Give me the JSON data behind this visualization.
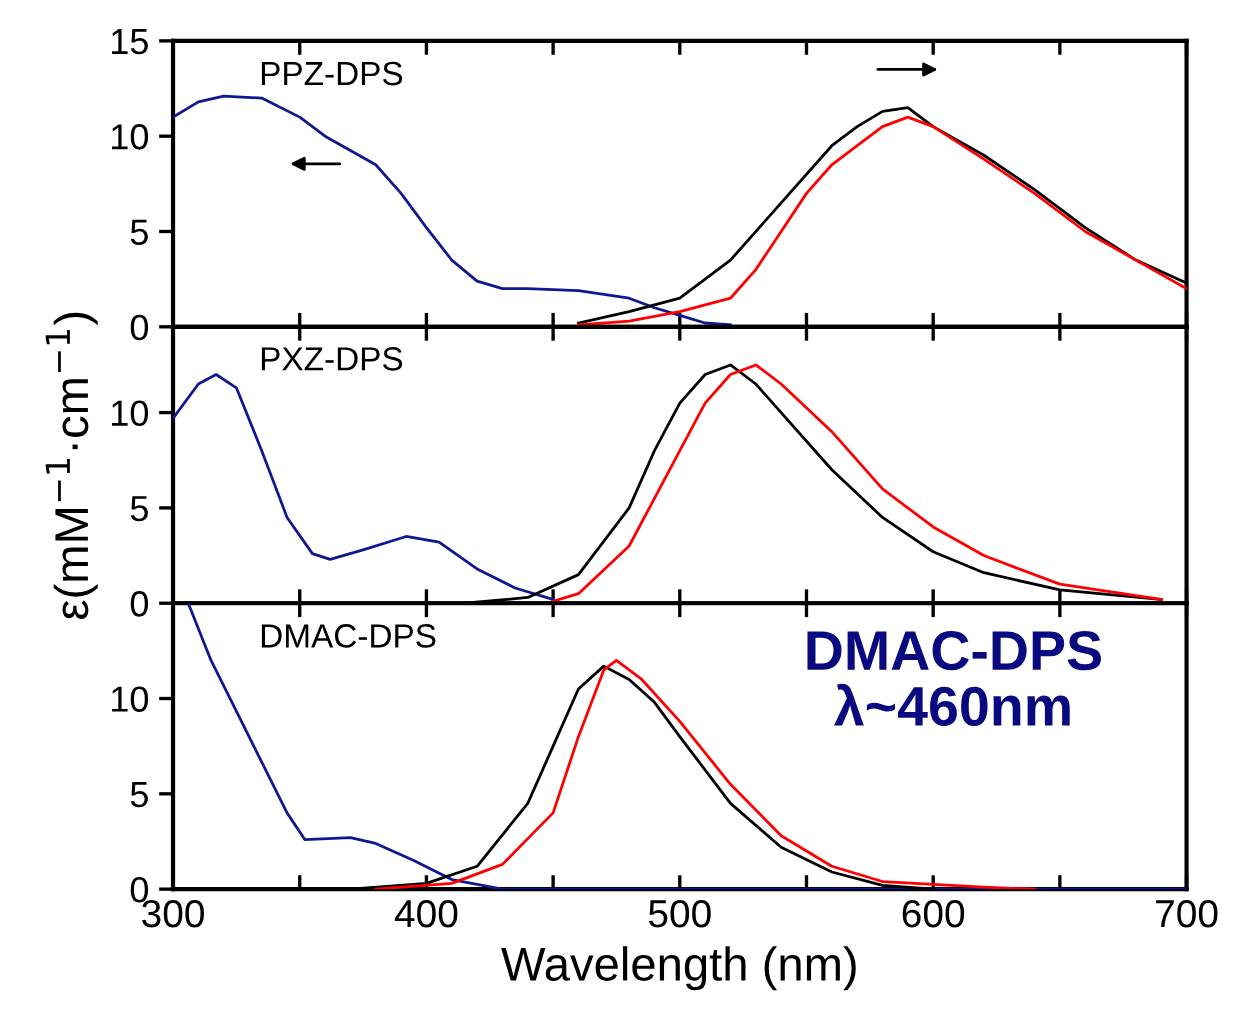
{
  "chart_data": [
    {
      "type": "line",
      "xlim": [
        300,
        700
      ],
      "ylim": [
        0,
        15
      ],
      "yticks": [
        0,
        5,
        10,
        15
      ],
      "xticks": [
        300,
        {
          "value": 350,
          "label": null
        },
        400,
        {
          "value": 450,
          "label": null
        },
        500,
        {
          "value": 550,
          "label": null
        },
        600,
        {
          "value": 650,
          "label": null
        },
        700
      ],
      "tick_labels": "y",
      "grid": false,
      "annotations": [
        "PPZ-DPS"
      ],
      "series": [
        {
          "color": "#101890",
          "x": [
            300,
            310,
            320,
            335,
            350,
            360,
            380,
            390,
            400,
            410,
            420,
            430,
            440,
            460,
            480,
            490,
            500,
            510,
            520
          ],
          "values": [
            11,
            11.8,
            12.1,
            12.0,
            11,
            10,
            8.5,
            7,
            5.2,
            3.5,
            2.4,
            2.0,
            2.0,
            1.9,
            1.5,
            1.0,
            0.6,
            0.2,
            0.1
          ]
        },
        {
          "color": "#000000",
          "x": [
            460,
            480,
            500,
            520,
            540,
            560,
            570,
            580,
            590,
            600,
            620,
            640,
            660,
            680,
            700
          ],
          "values": [
            0.2,
            0.8,
            1.5,
            3.5,
            6.5,
            9.5,
            10.5,
            11.3,
            11.5,
            10.5,
            9.0,
            7.2,
            5.2,
            3.5,
            2.3
          ]
        },
        {
          "color": "#ff0000",
          "x": [
            460,
            480,
            500,
            520,
            530,
            540,
            550,
            560,
            570,
            580,
            590,
            600,
            620,
            640,
            660,
            680,
            700
          ],
          "values": [
            0.1,
            0.3,
            0.8,
            1.5,
            3,
            5,
            7,
            8.5,
            9.5,
            10.5,
            11,
            10.5,
            8.8,
            7,
            5,
            3.5,
            2.0
          ]
        }
      ]
    },
    {
      "type": "line",
      "xlim": [
        300,
        700
      ],
      "ylim": [
        0,
        14.5
      ],
      "yticks": [
        0,
        5,
        10
      ],
      "xticks": [
        300,
        {
          "value": 350,
          "label": null
        },
        400,
        {
          "value": 450,
          "label": null
        },
        500,
        {
          "value": 550,
          "label": null
        },
        600,
        {
          "value": 650,
          "label": null
        },
        700
      ],
      "tick_labels": "y",
      "grid": false,
      "ylabel": "ε(mM$^{−1}$·cm$^{−1}$)",
      "annotations": [
        "PXZ-DPS"
      ],
      "series": [
        {
          "color": "#101890",
          "x": [
            300,
            310,
            317,
            325,
            335,
            345,
            355,
            362,
            375,
            392,
            405,
            420,
            435,
            450
          ],
          "values": [
            9.7,
            11.5,
            12.0,
            11.3,
            8,
            4.5,
            2.6,
            2.3,
            2.8,
            3.5,
            3.2,
            1.8,
            0.8,
            0.2
          ]
        },
        {
          "color": "#000000",
          "x": [
            415,
            440,
            460,
            480,
            490,
            500,
            510,
            520,
            530,
            540,
            560,
            580,
            600,
            620,
            650,
            690
          ],
          "values": [
            0,
            0.3,
            1.5,
            5,
            8,
            10.5,
            12,
            12.5,
            11.5,
            10,
            7,
            4.5,
            2.7,
            1.6,
            0.7,
            0.2
          ]
        },
        {
          "color": "#ff0000",
          "x": [
            450,
            460,
            480,
            490,
            500,
            510,
            520,
            530,
            540,
            560,
            580,
            600,
            620,
            650,
            690
          ],
          "values": [
            0.1,
            0.5,
            3,
            5.5,
            8,
            10.5,
            12,
            12.5,
            11.5,
            9,
            6,
            4,
            2.5,
            1.0,
            0.2
          ]
        }
      ]
    },
    {
      "type": "line",
      "xlim": [
        300,
        700
      ],
      "ylim": [
        0,
        15
      ],
      "yticks": [
        0,
        5,
        10
      ],
      "xticks": [
        300,
        {
          "value": 350,
          "label": null
        },
        400,
        {
          "value": 450,
          "label": null
        },
        500,
        {
          "value": 550,
          "label": null
        },
        600,
        {
          "value": 650,
          "label": null
        },
        700
      ],
      "grid": false,
      "xlabel": "Wavelength (nm)",
      "annotations": [
        "DMAC-DPS",
        "DMAC-DPS\nλ~460nm"
      ],
      "series": [
        {
          "color": "#101890",
          "x": [
            306,
            315,
            330,
            345,
            352,
            370,
            380,
            395,
            410,
            430,
            700
          ],
          "values": [
            15,
            12,
            8,
            4,
            2.6,
            2.7,
            2.4,
            1.5,
            0.5,
            0,
            0
          ]
        },
        {
          "color": "#000000",
          "x": [
            370,
            400,
            420,
            440,
            450,
            460,
            470,
            480,
            490,
            500,
            520,
            540,
            560,
            580,
            600
          ],
          "values": [
            0,
            0.3,
            1.2,
            4.5,
            7.5,
            10.5,
            11.7,
            11,
            9.8,
            8,
            4.5,
            2.2,
            0.9,
            0.2,
            0
          ]
        },
        {
          "color": "#ff0000",
          "x": [
            380,
            410,
            430,
            450,
            460,
            470,
            475,
            485,
            500,
            520,
            540,
            560,
            580,
            620,
            640
          ],
          "values": [
            0,
            0.3,
            1.3,
            4,
            8,
            11.5,
            12,
            11,
            8.8,
            5.5,
            2.8,
            1.2,
            0.4,
            0.1,
            0
          ]
        }
      ]
    }
  ]
}
